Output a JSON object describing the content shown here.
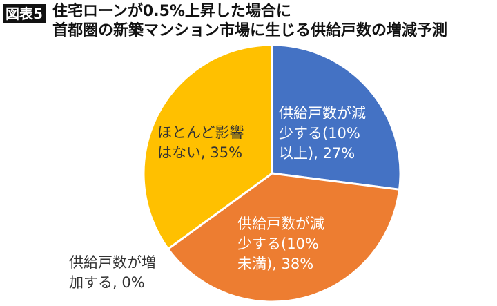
{
  "header": {
    "tag": "図表5",
    "title_line1": "住宅ローンが0.5%上昇した場合に",
    "title_line2": "首都圏の新築マンション市場に生じる供給戸数の増減予測"
  },
  "chart_data": {
    "type": "pie",
    "title": "住宅ローンが0.5%上昇した場合に首都圏の新築マンション市場に生じる供給戸数の増減予測",
    "start": "top",
    "direction": "clockwise",
    "slices": [
      {
        "label_lines": [
          "供給戸数が減",
          "少する(10%",
          "以上), 27%"
        ],
        "value": 27,
        "color": "#4472C4",
        "text_color": "#ffffff"
      },
      {
        "label_lines": [
          "供給戸数が減",
          "少する(10%",
          "未満), 38%"
        ],
        "value": 38,
        "color": "#ED7D31",
        "text_color": "#ffffff"
      },
      {
        "label_lines": [
          "供給戸数が増",
          "加する, 0%"
        ],
        "value": 0,
        "color": "#A5A5A5",
        "text_color": "#333333"
      },
      {
        "label_lines": [
          "ほとんど影響",
          "はない, 35%"
        ],
        "value": 35,
        "color": "#FFC000",
        "text_color": "#333333"
      }
    ]
  }
}
